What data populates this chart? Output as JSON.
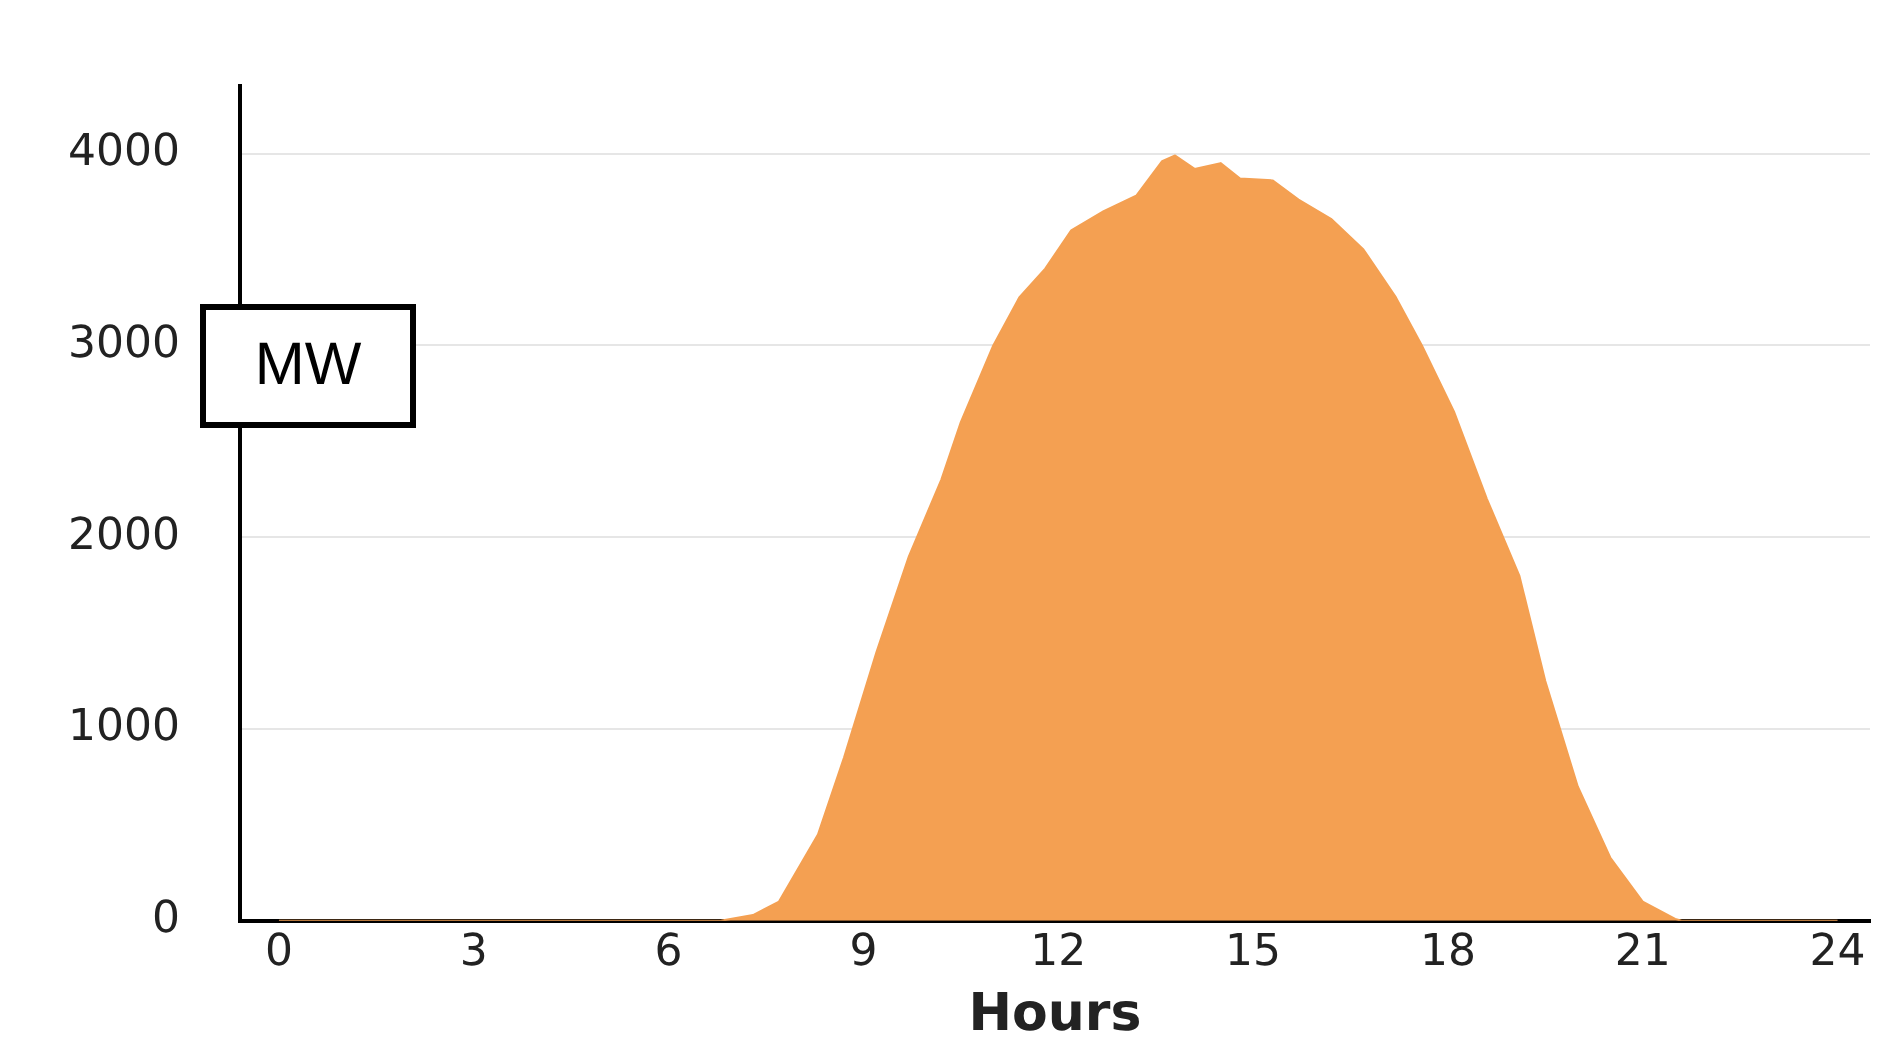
{
  "chart_data": {
    "type": "area",
    "xlabel": "Hours",
    "ylabel": "MW",
    "x": [
      0,
      6.8,
      7.3,
      7.7,
      8.3,
      8.7,
      9.2,
      9.7,
      10.2,
      10.5,
      11,
      11.4,
      11.8,
      12.2,
      12.7,
      13.2,
      13.6,
      13.8,
      14.1,
      14.5,
      14.8,
      15.3,
      15.7,
      16.2,
      16.7,
      17.2,
      17.6,
      18.1,
      18.6,
      19.1,
      19.5,
      20,
      20.5,
      21,
      21.5,
      21.6,
      24
    ],
    "series": [
      {
        "color": "#f4a052",
        "values": [
          0,
          0,
          30,
          100,
          450,
          850,
          1400,
          1900,
          2300,
          2600,
          3000,
          3250,
          3400,
          3600,
          3700,
          3780,
          3960,
          3990,
          3920,
          3950,
          3870,
          3860,
          3760,
          3660,
          3500,
          3250,
          3000,
          2650,
          2200,
          1800,
          1250,
          700,
          330,
          100,
          10,
          0,
          0
        ]
      }
    ],
    "xlim": [
      -0.6,
      24.5
    ],
    "xticks": [
      0,
      3,
      6,
      9,
      12,
      15,
      18,
      21,
      24
    ],
    "ylim": [
      0,
      4350
    ],
    "yticks": [
      0,
      1000,
      2000,
      3000,
      4000
    ],
    "grid": "y",
    "legend": false
  }
}
